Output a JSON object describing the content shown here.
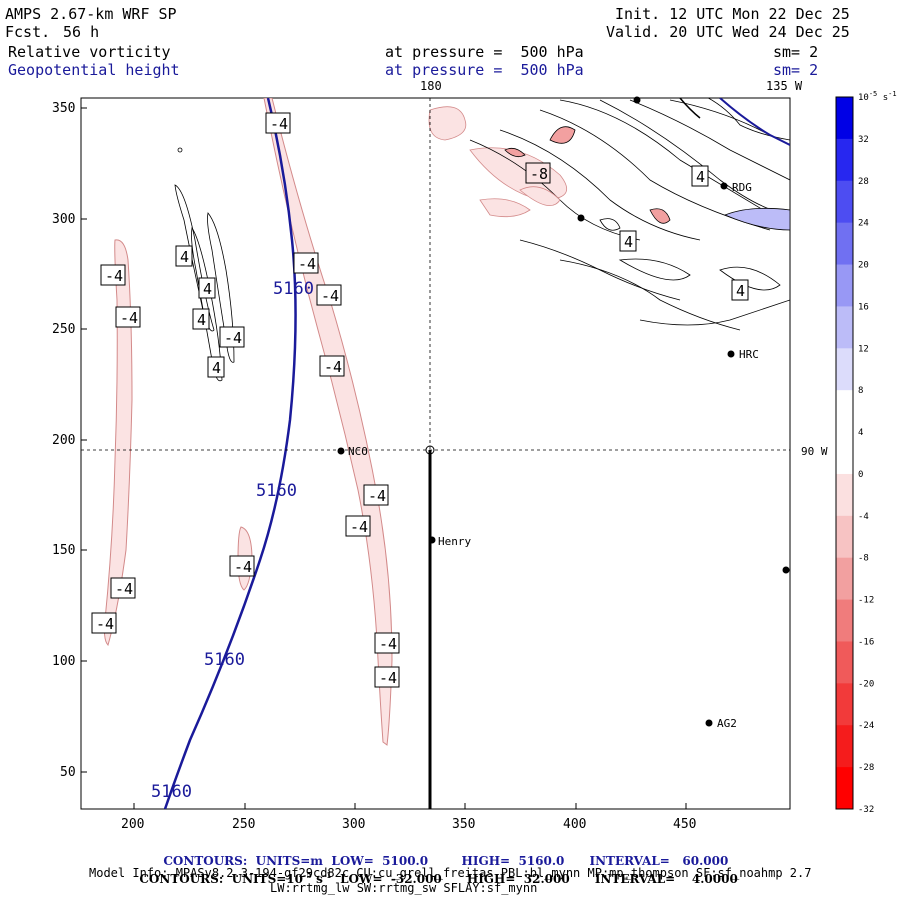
{
  "header": {
    "model": "AMPS 2.67-km WRF SP",
    "fcst_label": "Fcst.",
    "fcst_value": "56 h",
    "init": "Init. 12 UTC Mon 22 Dec 25",
    "valid": "Valid. 20 UTC Wed 24 Dec 25"
  },
  "fields": [
    {
      "name": "Relative vorticity",
      "level": "at pressure =  500 hPa",
      "sm": "sm= 2"
    },
    {
      "name": "Geopotential height",
      "level": "at pressure =  500 hPa",
      "sm": "sm= 2"
    }
  ],
  "map": {
    "x_ticks": [
      "200",
      "250",
      "300",
      "350",
      "400",
      "450"
    ],
    "y_ticks": [
      "350",
      "300",
      "250",
      "200",
      "150",
      "100",
      "50"
    ],
    "lon_top_180": "180",
    "lon_top_135": "135 W",
    "lon_right_90": "90 W",
    "stations": [
      "RDG",
      "HRC",
      "NCO",
      "Henry",
      "AG2"
    ],
    "height_labels": [
      "5160",
      "5160",
      "5160",
      "5160"
    ],
    "vort_labels": [
      "-4",
      "-4",
      "-4",
      "-4",
      "-4",
      "-4",
      "-4",
      "-4",
      "-4",
      "-4",
      "-4",
      "-4",
      "-4",
      "-8"
    ],
    "vort_pos_labels": [
      "4",
      "4",
      "4",
      "4",
      "4",
      "4",
      "4"
    ]
  },
  "colorbar": {
    "units": "10",
    "units_exp": "-5",
    "units_tail": " s",
    "units_exp2": "-1",
    "ticks": [
      "32",
      "28",
      "24",
      "20",
      "16",
      "12",
      "8",
      "4",
      "0",
      "-4",
      "-8",
      "-12",
      "-16",
      "-20",
      "-24",
      "-28",
      "-32"
    ],
    "colors": [
      "#0000e6",
      "#2727f0",
      "#4d4df2",
      "#7070f2",
      "#9898f5",
      "#bcbcf8",
      "#dcdcfb",
      "#ffffff",
      "#ffffff",
      "#fbe0e0",
      "#f7c3c3",
      "#f2a0a0",
      "#f07c7c",
      "#f05a5a",
      "#f23a3a",
      "#f51c1c",
      "#ff0000"
    ]
  },
  "footer": {
    "line1_contours": "CONTOURS:",
    "line1_units": "UNITS=m",
    "line1_low": "LOW=  5100.0",
    "line1_high": "HIGH=  5160.0",
    "line1_interval": "INTERVAL=   60.000",
    "line2_contours": "CONTOURS:",
    "line2_units": "UNITS=10",
    "line2_units_exp": "-5",
    "line2_units_tail": " s",
    "line2_units_exp2": "-1",
    "line2_low": "LOW=  -32.000",
    "line2_high": "HIGH=  32.000",
    "line2_interval": "INTERVAL=    4.0000",
    "model_info": "Model Info: MPASv8.2.3-194-gf29cd82c CU:cu_grell_freitas PBL:bl_mynn MP:mp_thompson SF:sf_noahmp 2.7",
    "model_info2": "LW:rrtmg_lw SW:rrtmg_sw SFLAY:sf_mynn"
  }
}
